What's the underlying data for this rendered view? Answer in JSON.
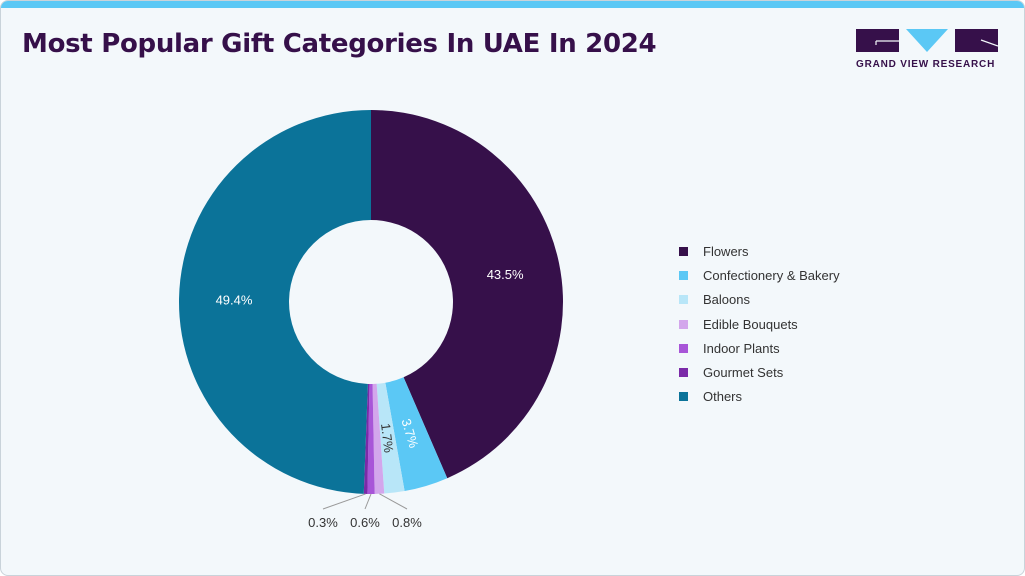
{
  "title": "Most Popular Gift Categories In UAE In 2024",
  "logo": {
    "text": "GRAND VIEW RESEARCH",
    "colors": {
      "dark": "#36104a",
      "accent": "#5bc8f5"
    }
  },
  "chart_data": {
    "type": "pie",
    "variant": "donut",
    "title": "Most Popular Gift Categories In UAE In 2024",
    "legend_position": "right",
    "categories": [
      "Flowers",
      "Confectionery & Bakery",
      "Baloons",
      "Edible Bouquets",
      "Indoor Plants",
      "Gourmet Sets",
      "Others"
    ],
    "values": [
      43.5,
      3.7,
      1.7,
      0.8,
      0.6,
      0.3,
      49.4
    ],
    "labels": [
      "43.5%",
      "3.7%",
      "1.7%",
      "0.8%",
      "0.6%",
      "0.3%",
      "49.4%"
    ],
    "colors": [
      "#36104a",
      "#5bc8f5",
      "#b8e6f8",
      "#d3a6ec",
      "#a855d8",
      "#7b2aa8",
      "#0b7399"
    ],
    "unit": "%"
  }
}
